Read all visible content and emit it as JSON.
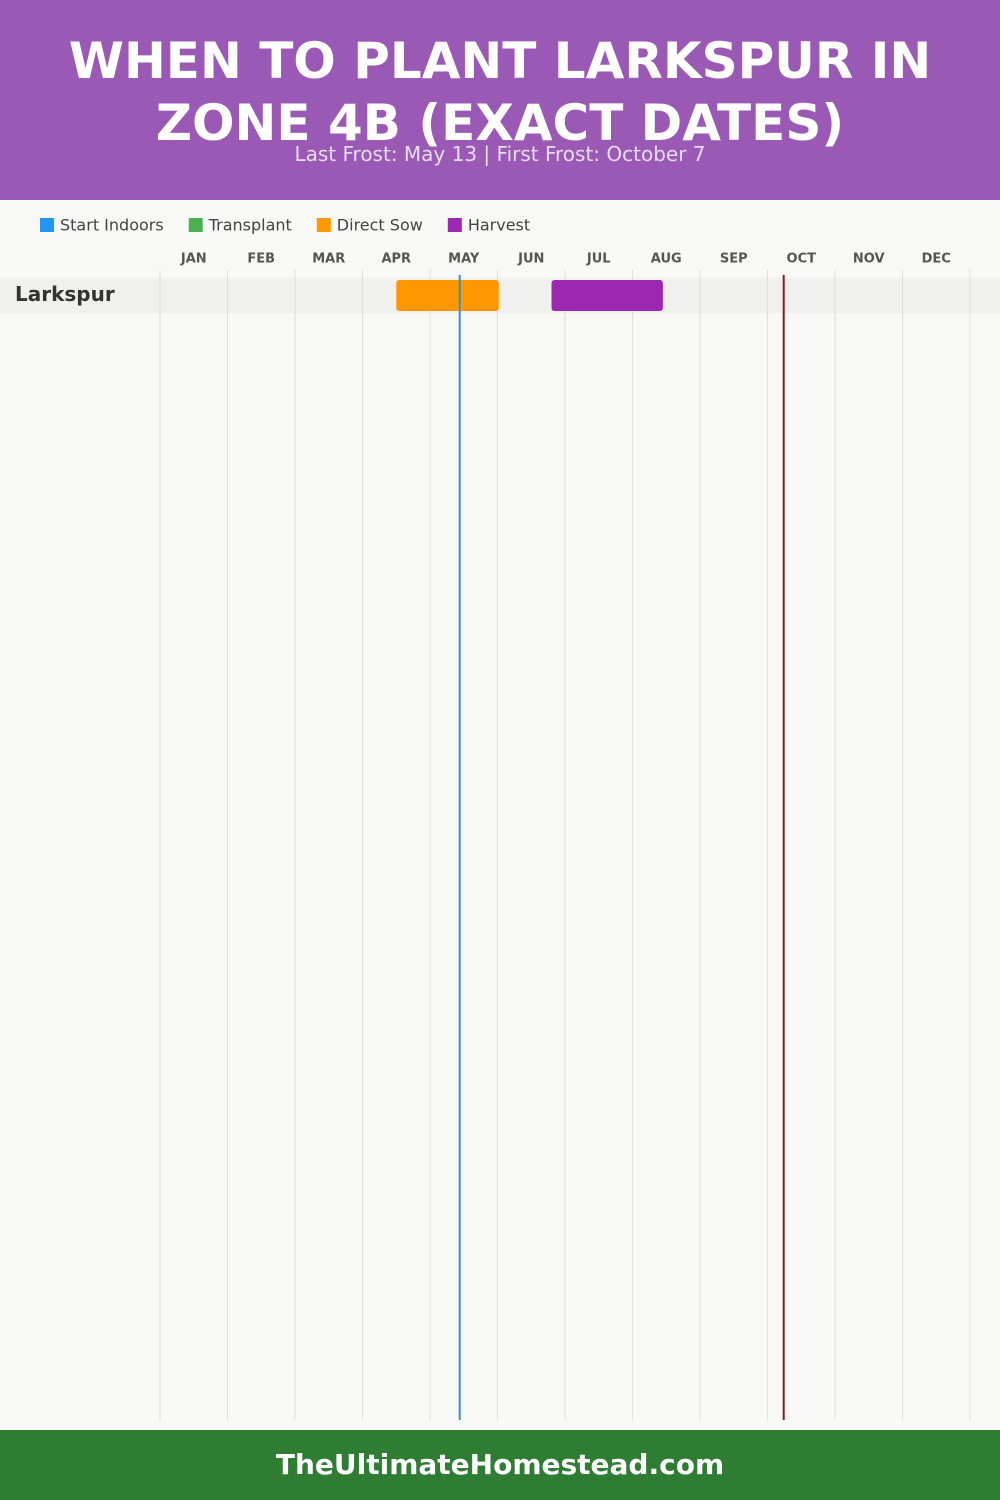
{
  "chart_data": {
    "type": "gantt",
    "title": "WHEN TO PLANT LARKSPUR IN ZONE 4B (EXACT DATES)",
    "subtitle": "Last Frost: May 13 | First Frost: October 7",
    "categories": [
      "Larkspur"
    ],
    "series": [
      {
        "name": "Start Indoors",
        "color": "#2196f3",
        "values": [
          null
        ]
      },
      {
        "name": "Transplant",
        "color": "#4caf50",
        "values": [
          null
        ]
      },
      {
        "name": "Direct Sow",
        "color": "#ff9800",
        "values": [
          [
            3.5,
            5.02
          ]
        ]
      },
      {
        "name": "Harvest",
        "color": "#9c27b0",
        "values": [
          [
            5.8,
            7.45
          ]
        ]
      }
    ],
    "xlim": [
      0,
      12
    ],
    "xticks": [
      {
        "value": 0,
        "label": "JAN"
      },
      {
        "value": 1,
        "label": "FEB"
      },
      {
        "value": 2,
        "label": "MAR"
      },
      {
        "value": 3,
        "label": "APR"
      },
      {
        "value": 4,
        "label": "MAY"
      },
      {
        "value": 5,
        "label": "JUN"
      },
      {
        "value": 6,
        "label": "JUL"
      },
      {
        "value": 7,
        "label": "AUG"
      },
      {
        "value": 8,
        "label": "SEP"
      },
      {
        "value": 9,
        "label": "OCT"
      },
      {
        "value": 10,
        "label": "NOV"
      },
      {
        "value": 11,
        "label": "DEC"
      }
    ],
    "grid": true,
    "reference_lines": [
      {
        "value": 4.44,
        "color": "#3a8fd0"
      },
      {
        "value": 9.24,
        "color": "#8b1a1a"
      }
    ],
    "footer": "TheUltimateHomestead.com"
  }
}
